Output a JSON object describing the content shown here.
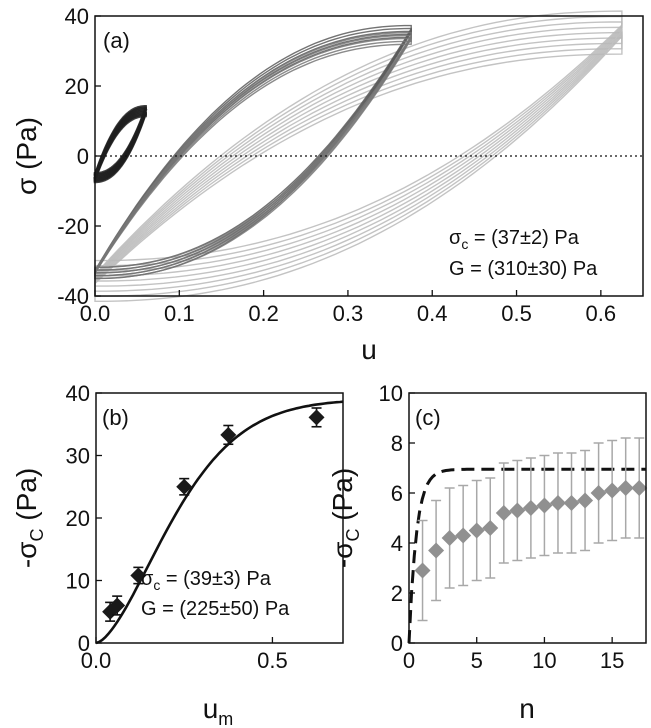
{
  "chart_data": [
    {
      "panel": "(a)",
      "type": "line",
      "xlabel": "u",
      "ylabel": "σ (Pa)",
      "xlim": [
        0,
        0.65
      ],
      "ylim": [
        -40,
        40
      ],
      "xticks": [
        "0.0",
        "0.1",
        "0.2",
        "0.3",
        "0.4",
        "0.5",
        "0.6"
      ],
      "yticks": [
        "-40",
        "-20",
        "0",
        "20",
        "40"
      ],
      "reference_line": {
        "y": 0,
        "style": "dotted"
      },
      "annotation_sigma_sym": "σ",
      "annotation_sigma_sub": "c",
      "annotation_sigma_rest": " = (37±2)  Pa",
      "annotation_G": "G  = (310±30) Pa",
      "series": [
        {
          "amplitude": 0.06,
          "sigma_top": 13,
          "sigma_bottom": -6,
          "color": "#1e1e1e"
        },
        {
          "amplitude": 0.375,
          "sigma_top": 36,
          "sigma_bottom": -33,
          "color": "#5a5a5a"
        },
        {
          "amplitude": 0.375,
          "sigma_top": 34,
          "sigma_bottom": -33,
          "color": "#777777"
        },
        {
          "amplitude": 0.625,
          "sigma_top": 36,
          "sigma_bottom": -35,
          "color": "#b8b8b8"
        }
      ]
    },
    {
      "panel": "(b)",
      "type": "scatter",
      "xlabel_main": "u",
      "xlabel_sub": "m",
      "ylabel_pre": "-σ",
      "ylabel_sub": "C",
      "ylabel_post": " (Pa)",
      "xlim": [
        0,
        0.7
      ],
      "ylim": [
        0,
        40
      ],
      "xticks": [
        "0.0",
        "0.5"
      ],
      "yticks": [
        "0",
        "10",
        "20",
        "30",
        "40"
      ],
      "points": [
        {
          "x": 0.04,
          "y": 5.0,
          "err": 1.5
        },
        {
          "x": 0.06,
          "y": 6.0,
          "err": 1.5
        },
        {
          "x": 0.12,
          "y": 10.8,
          "err": 1.3
        },
        {
          "x": 0.25,
          "y": 25.0,
          "err": 1.3
        },
        {
          "x": 0.375,
          "y": 33.3,
          "err": 1.5
        },
        {
          "x": 0.625,
          "y": 36.1,
          "err": 1.5
        }
      ],
      "fit": {
        "sigma_c": 39,
        "G": 225
      },
      "annotation_sigma_sym": "σ",
      "annotation_sigma_sub": "c",
      "annotation_sigma_rest": " = (39±3) Pa",
      "annotation_G": "G  = (225±50) Pa"
    },
    {
      "panel": "(c)",
      "type": "scatter",
      "xlabel": "n",
      "ylabel_pre": "-σ",
      "ylabel_sub": "C",
      "ylabel_post": " (Pa)",
      "xlim": [
        0,
        17.5
      ],
      "ylim": [
        0,
        10
      ],
      "xticks": [
        "0",
        "5",
        "10",
        "15"
      ],
      "yticks": [
        "0",
        "2",
        "4",
        "6",
        "8",
        "10"
      ],
      "points": [
        {
          "x": 1,
          "y": 2.9,
          "err": 2.0
        },
        {
          "x": 2,
          "y": 3.7,
          "err": 2.0
        },
        {
          "x": 3,
          "y": 4.2,
          "err": 2.0
        },
        {
          "x": 4,
          "y": 4.3,
          "err": 2.0
        },
        {
          "x": 5,
          "y": 4.5,
          "err": 2.0
        },
        {
          "x": 6,
          "y": 4.6,
          "err": 2.0
        },
        {
          "x": 7,
          "y": 5.2,
          "err": 2.0
        },
        {
          "x": 8,
          "y": 5.3,
          "err": 2.0
        },
        {
          "x": 9,
          "y": 5.4,
          "err": 2.0
        },
        {
          "x": 10,
          "y": 5.5,
          "err": 2.0
        },
        {
          "x": 11,
          "y": 5.6,
          "err": 2.0
        },
        {
          "x": 12,
          "y": 5.6,
          "err": 2.0
        },
        {
          "x": 13,
          "y": 5.7,
          "err": 2.0
        },
        {
          "x": 14,
          "y": 6.0,
          "err": 2.0
        },
        {
          "x": 15,
          "y": 6.1,
          "err": 2.0
        },
        {
          "x": 16,
          "y": 6.2,
          "err": 2.0
        },
        {
          "x": 17,
          "y": 6.2,
          "err": 2.0
        }
      ],
      "dashed_curve": {
        "plateau": 6.95,
        "rate": 1.8
      }
    }
  ],
  "colors": {
    "axis": "#111111",
    "marker_b": "#1a1a1a",
    "marker_c": "#909090",
    "error_c": "#a8a8a8",
    "fit_line": "#111111"
  }
}
